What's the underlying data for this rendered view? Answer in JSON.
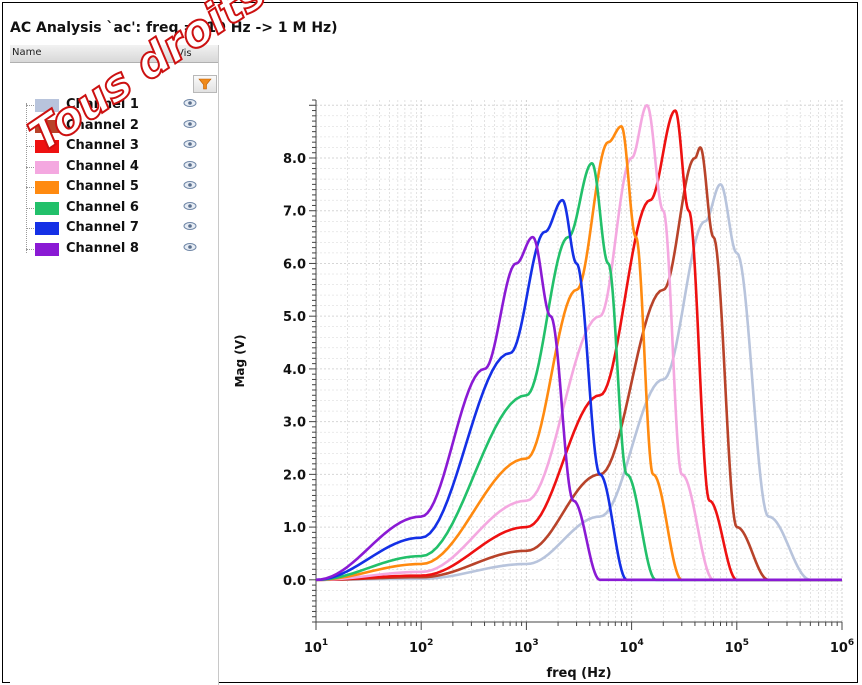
{
  "window": {
    "title": "AC Analysis `ac': freq = (10 Hz -> 1 M Hz)"
  },
  "table_header": {
    "name": "Name",
    "vis": "Vis"
  },
  "filter_icon": "funnel-icon",
  "visibility_icon": "eye-icon",
  "channels": [
    {
      "label": "Channel 1",
      "color": "#b8c4dc"
    },
    {
      "label": "Channel 2",
      "color": "#b8432a"
    },
    {
      "label": "Channel 3",
      "color": "#ee1111"
    },
    {
      "label": "Channel 4",
      "color": "#f4a8e0"
    },
    {
      "label": "Channel 5",
      "color": "#ff8a10"
    },
    {
      "label": "Channel 6",
      "color": "#22c06a"
    },
    {
      "label": "Channel 7",
      "color": "#1430e6"
    },
    {
      "label": "Channel 8",
      "color": "#8a1ad4"
    }
  ],
  "watermark": "Tous droits réservés",
  "chart_data": {
    "type": "line",
    "title": "",
    "xlabel": "freq (Hz)",
    "ylabel": "Mag (V)",
    "x_scale": "log",
    "xlim": [
      10,
      1000000
    ],
    "ylim": [
      -0.8,
      9.1
    ],
    "grid": true,
    "x_ticks": [
      {
        "base": "10",
        "exp": "1"
      },
      {
        "base": "10",
        "exp": "2"
      },
      {
        "base": "10",
        "exp": "3"
      },
      {
        "base": "10",
        "exp": "4"
      },
      {
        "base": "10",
        "exp": "5"
      },
      {
        "base": "10",
        "exp": "6"
      }
    ],
    "y_ticks": [
      "0.0",
      "1.0",
      "2.0",
      "3.0",
      "4.0",
      "5.0",
      "6.0",
      "7.0",
      "8.0"
    ],
    "series": [
      {
        "name": "Channel 1",
        "color": "#b8c4dc",
        "x": [
          10,
          100,
          1000,
          5000,
          20000,
          50000,
          70000,
          100000,
          200000,
          500000,
          1000000
        ],
        "y": [
          0.0,
          0.02,
          0.3,
          1.2,
          3.8,
          6.8,
          7.5,
          6.2,
          1.2,
          0.0,
          0.0
        ]
      },
      {
        "name": "Channel 2",
        "color": "#b8432a",
        "x": [
          10,
          100,
          1000,
          5000,
          20000,
          40000,
          45000,
          60000,
          100000,
          200000,
          1000000
        ],
        "y": [
          0.0,
          0.05,
          0.55,
          2.0,
          5.5,
          8.0,
          8.2,
          6.5,
          1.0,
          0.0,
          0.0
        ]
      },
      {
        "name": "Channel 3",
        "color": "#ee1111",
        "x": [
          10,
          100,
          1000,
          5000,
          15000,
          26000,
          35000,
          55000,
          100000,
          1000000
        ],
        "y": [
          0.0,
          0.08,
          1.0,
          3.5,
          7.2,
          8.9,
          7.0,
          1.5,
          0.0,
          0.0
        ]
      },
      {
        "name": "Channel 4",
        "color": "#f4a8e0",
        "x": [
          10,
          100,
          1000,
          5000,
          10000,
          14000,
          20000,
          30000,
          60000,
          1000000
        ],
        "y": [
          0.0,
          0.15,
          1.5,
          5.0,
          8.0,
          9.0,
          7.0,
          2.0,
          0.0,
          0.0
        ]
      },
      {
        "name": "Channel 5",
        "color": "#ff8a10",
        "x": [
          10,
          100,
          1000,
          3000,
          6000,
          8000,
          11000,
          16000,
          30000,
          1000000
        ],
        "y": [
          0.0,
          0.3,
          2.3,
          5.5,
          8.3,
          8.6,
          6.5,
          2.0,
          0.0,
          0.0
        ]
      },
      {
        "name": "Channel 6",
        "color": "#22c06a",
        "x": [
          10,
          100,
          1000,
          2500,
          4200,
          6000,
          9000,
          17000,
          1000000
        ],
        "y": [
          0.0,
          0.45,
          3.5,
          6.5,
          7.9,
          6.0,
          2.0,
          0.0,
          0.0
        ]
      },
      {
        "name": "Channel 7",
        "color": "#1430e6",
        "x": [
          10,
          100,
          700,
          1500,
          2200,
          3000,
          5000,
          9000,
          1000000
        ],
        "y": [
          0.0,
          0.8,
          4.3,
          6.6,
          7.2,
          6.0,
          2.0,
          0.0,
          0.0
        ]
      },
      {
        "name": "Channel 8",
        "color": "#8a1ad4",
        "x": [
          10,
          100,
          400,
          800,
          1150,
          1700,
          2800,
          5000,
          1000000
        ],
        "y": [
          0.0,
          1.2,
          4.0,
          6.0,
          6.5,
          5.0,
          1.5,
          0.0,
          0.0
        ]
      }
    ]
  }
}
